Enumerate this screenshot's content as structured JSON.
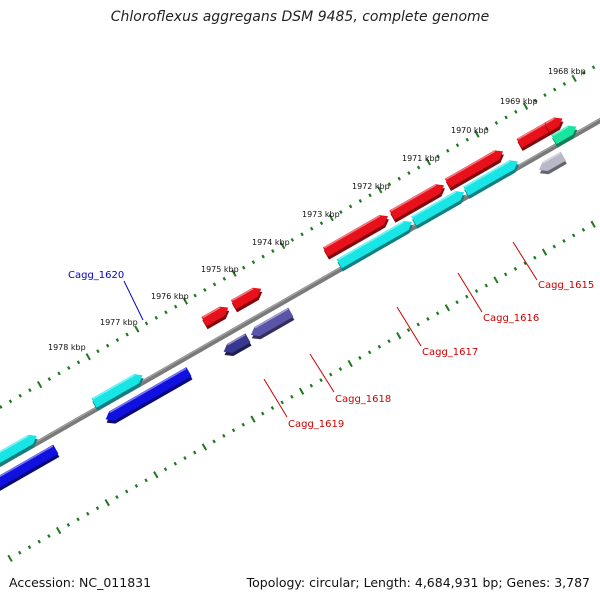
{
  "title": "Chloroflexus aggregans DSM 9485, complete genome",
  "accession": "Accession: NC_011831",
  "summary": "Topology: circular; Length: 4,684,931 bp; Genes: 3,787",
  "colors": {
    "red": "#e8101a",
    "cyan": "#18e6e6",
    "blue": "#1010e0",
    "navy": "#383890",
    "purple": "#5a55a8",
    "grey": "#b8b8c8",
    "green": "#18e6a0",
    "backbone": "#7a7a7a",
    "tick": "#1f7a1f",
    "label_red": "#cc0000",
    "label_blue": "#0000cc"
  },
  "scale_labels": [
    "1968 kbp",
    "1969 kbp",
    "1970 kbp",
    "1971 kbp",
    "1972 kbp",
    "1973 kbp",
    "1974 kbp",
    "1975 kbp",
    "1976 kbp",
    "1977 kbp",
    "1978 kbp"
  ],
  "gene_labels": [
    {
      "text": "Cagg_1615",
      "color": "red"
    },
    {
      "text": "Cagg_1616",
      "color": "red"
    },
    {
      "text": "Cagg_1617",
      "color": "red"
    },
    {
      "text": "Cagg_1618",
      "color": "red"
    },
    {
      "text": "Cagg_1619",
      "color": "red"
    },
    {
      "text": "Cagg_1620",
      "color": "blue"
    }
  ]
}
